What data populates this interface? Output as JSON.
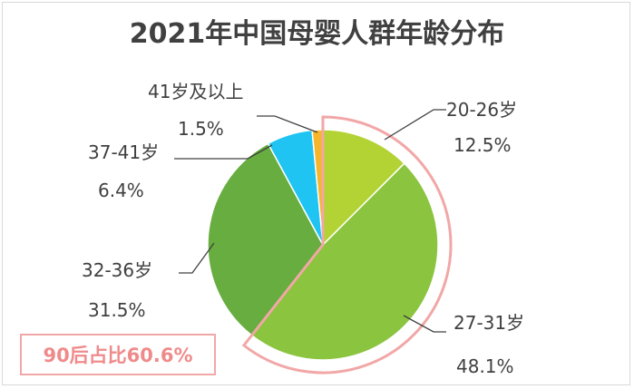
{
  "chart_data": {
    "type": "pie",
    "title": "2021年中国母婴人群年龄分布",
    "start_angle_deg": 0,
    "direction": "clockwise",
    "slices": [
      {
        "label": "20-26岁",
        "value": 12.5,
        "value_text": "12.5%",
        "color": "#b3d335"
      },
      {
        "label": "27-31岁",
        "value": 48.1,
        "value_text": "48.1%",
        "color": "#8bc43f"
      },
      {
        "label": "32-36岁",
        "value": 31.5,
        "value_text": "31.5%",
        "color": "#67ad3f"
      },
      {
        "label": "37-41岁",
        "value": 6.4,
        "value_text": "6.4%",
        "color": "#1fc4f3"
      },
      {
        "label": "41岁及以上",
        "value": 1.5,
        "value_text": "1.5%",
        "color": "#f7b52c"
      }
    ],
    "highlight": {
      "slices": [
        "20-26岁",
        "27-31岁"
      ],
      "color": "#f2a7a7"
    },
    "annotation": "90后占比60.6%"
  }
}
